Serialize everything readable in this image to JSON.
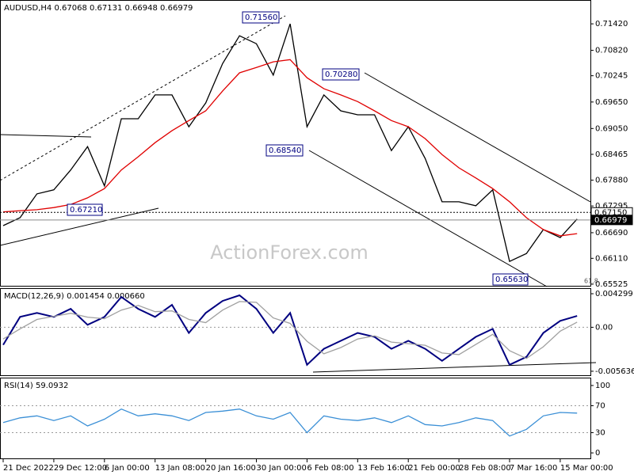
{
  "chart_data": [
    {
      "type": "line",
      "title": "AUDUSD,H4 0.67068 0.67131 0.66948 0.66979",
      "watermark": "ActionForex.com",
      "series": [
        {
          "color": "#000000",
          "values": [
            0.6685,
            0.6703,
            0.6757,
            0.6766,
            0.6811,
            0.6864,
            0.6775,
            0.6927,
            0.6927,
            0.6981,
            0.6981,
            0.6909,
            0.6963,
            0.7052,
            0.7115,
            0.7097,
            0.7026,
            0.7142,
            0.6909,
            0.6981,
            0.6945,
            0.6936,
            0.6936,
            0.6855,
            0.6909,
            0.6837,
            0.6739,
            0.6739,
            0.673,
            0.6766,
            0.6604,
            0.6622,
            0.6676,
            0.6658,
            0.67
          ]
        },
        {
          "color": "#e00000",
          "values": [
            0.6716,
            0.6719,
            0.6721,
            0.6726,
            0.6733,
            0.6748,
            0.6769,
            0.6811,
            0.6841,
            0.6873,
            0.69,
            0.6923,
            0.6945,
            0.699,
            0.7031,
            0.7043,
            0.7056,
            0.7061,
            0.702,
            0.6995,
            0.6981,
            0.6966,
            0.6945,
            0.6923,
            0.6909,
            0.6882,
            0.6846,
            0.6816,
            0.6793,
            0.6769,
            0.6739,
            0.6703,
            0.6676,
            0.6662,
            0.6667
          ]
        }
      ],
      "ylim": [
        0.6547,
        0.7196
      ],
      "yticks": [
        {
          "value": 0.7142,
          "label": "0.71420"
        },
        {
          "value": 0.7082,
          "label": "0.70820"
        },
        0.70245,
        {
          "value": 0.6965,
          "label": "0.69650"
        },
        {
          "value": 0.6905,
          "label": "0.69050"
        },
        0.68465,
        {
          "value": 0.6788,
          "label": "0.67880"
        },
        0.67295,
        {
          "value": 0.6669,
          "label": "0.66690"
        },
        {
          "value": 0.6611,
          "label": "0.66110"
        },
        0.65525
      ],
      "price_tags": [
        {
          "value": 0.6715,
          "label": "0.67150",
          "line_style": "dotted"
        },
        {
          "value": 0.66979,
          "label": "0.66979",
          "line_style": "solid"
        }
      ],
      "annotations": [
        "0.71560",
        "0.70280",
        "0.68540",
        "0.67210",
        "0.65630",
        "61.8"
      ]
    },
    {
      "type": "line",
      "title": "MACD(12,26,9) 0.001454 0.000660",
      "series": [
        {
          "color": "#000080",
          "values": [
            -0.00225,
            0.00133,
            0.00184,
            0.00133,
            0.00236,
            0.00031,
            0.00133,
            0.00389,
            0.00236,
            0.00133,
            0.00287,
            -0.00072,
            0.00184,
            0.00338,
            0.0041,
            0.00236,
            -0.00072,
            0.00184,
            -0.00481,
            -0.00276,
            -0.00174,
            -0.00072,
            -0.00123,
            -0.00276,
            -0.00174,
            -0.00276,
            -0.0043,
            -0.00276,
            -0.00123,
            -0.0002,
            -0.00481,
            -0.00379,
            -0.00072,
            0.00082,
            0.00145
          ]
        },
        {
          "color": "#a0a0a0",
          "values": [
            -0.0015,
            -0.0002,
            0.001,
            0.0014,
            0.0018,
            0.0013,
            0.0011,
            0.0022,
            0.0028,
            0.002,
            0.0021,
            0.001,
            0.0006,
            0.0022,
            0.0033,
            0.0032,
            0.0012,
            0.0005,
            -0.0018,
            -0.0034,
            -0.0026,
            -0.0015,
            -0.0011,
            -0.0019,
            -0.0021,
            -0.0023,
            -0.0033,
            -0.0035,
            -0.0022,
            -0.0009,
            -0.003,
            -0.004,
            -0.0025,
            -0.0005,
            0.00066
          ]
        }
      ],
      "ylim": [
        -0.00625,
        0.00491
      ],
      "yticks": [
        0.004299,
        {
          "value": 0,
          "label": "0.00"
        },
        -0.005636
      ],
      "levels": [
        0
      ]
    },
    {
      "type": "line",
      "title": "RSI(14) 59.0932",
      "series": [
        {
          "color": "#3a8fd6",
          "values": [
            45,
            52,
            55,
            48,
            55,
            40,
            50,
            65,
            55,
            58,
            55,
            48,
            60,
            62,
            65,
            55,
            50,
            60,
            30,
            55,
            50,
            48,
            52,
            45,
            55,
            42,
            40,
            45,
            52,
            48,
            25,
            35,
            55,
            60,
            59
          ]
        }
      ],
      "ylim": [
        -9.3,
        110.5
      ],
      "yticks": [
        100,
        70,
        30,
        0
      ],
      "levels": [
        70,
        30
      ],
      "categories": [
        "21 Dec 2022",
        null,
        null,
        "29 Dec 12:00",
        null,
        null,
        "6 Jan 00:00",
        null,
        null,
        "13 Jan 08:00",
        null,
        null,
        "20 Jan 16:00",
        null,
        null,
        "30 Jan 00:00",
        null,
        null,
        "6 Feb 08:00",
        null,
        null,
        "13 Feb 16:00",
        null,
        null,
        "21 Feb 00:00",
        null,
        null,
        "28 Feb 08:00",
        null,
        null,
        "7 Mar 16:00",
        null,
        null,
        "15 Mar 00:00",
        null
      ]
    }
  ]
}
